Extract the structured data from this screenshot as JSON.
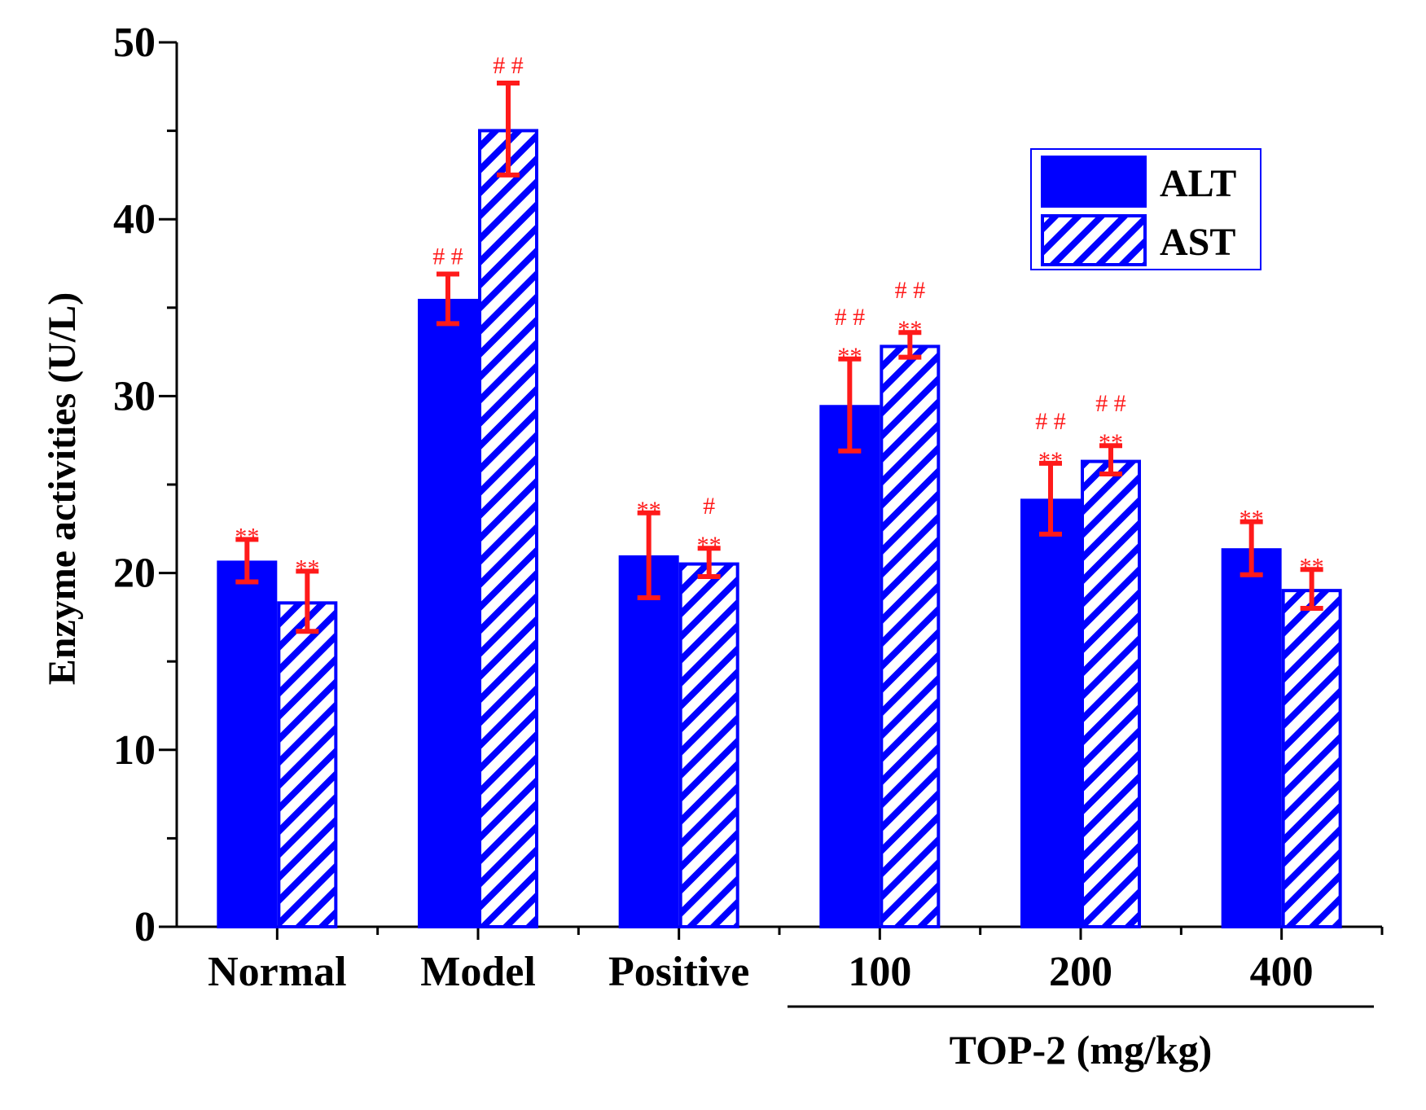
{
  "chart_data": {
    "type": "bar",
    "title": "",
    "ylabel": "Enzyme activities (U/L)",
    "xlabel": "",
    "ylim": [
      0,
      50
    ],
    "yticks": [
      0,
      10,
      20,
      30,
      40,
      50
    ],
    "categories": [
      "Normal",
      "Model",
      "Positive",
      "100",
      "200",
      "400"
    ],
    "group_label": "TOP-2 (mg/kg)",
    "group_label_categories": [
      "100",
      "200",
      "400"
    ],
    "legend_position": "top-right",
    "colors": {
      "bar": "#0000ff",
      "error": "#ff1a1a",
      "hatch_bg": "#ffffff"
    },
    "series": [
      {
        "name": "ALT",
        "pattern": "solid",
        "values": [
          20.7,
          35.5,
          21.0,
          29.5,
          24.2,
          21.4
        ],
        "errors": [
          1.2,
          1.4,
          2.4,
          2.6,
          2.0,
          1.5
        ],
        "annotations": [
          [
            "**"
          ],
          [
            "# #"
          ],
          [
            "**"
          ],
          [
            "# #",
            "**"
          ],
          [
            "# #",
            "**"
          ],
          [
            "**"
          ]
        ]
      },
      {
        "name": "AST",
        "pattern": "hatched",
        "values": [
          18.4,
          45.1,
          20.6,
          32.9,
          26.4,
          19.1
        ],
        "errors": [
          1.7,
          2.6,
          0.8,
          0.7,
          0.8,
          1.1
        ],
        "annotations": [
          [
            "**"
          ],
          [
            "# #"
          ],
          [
            "#",
            "**"
          ],
          [
            "# #",
            "**"
          ],
          [
            "# #",
            "**"
          ],
          [
            "**"
          ]
        ]
      }
    ]
  }
}
